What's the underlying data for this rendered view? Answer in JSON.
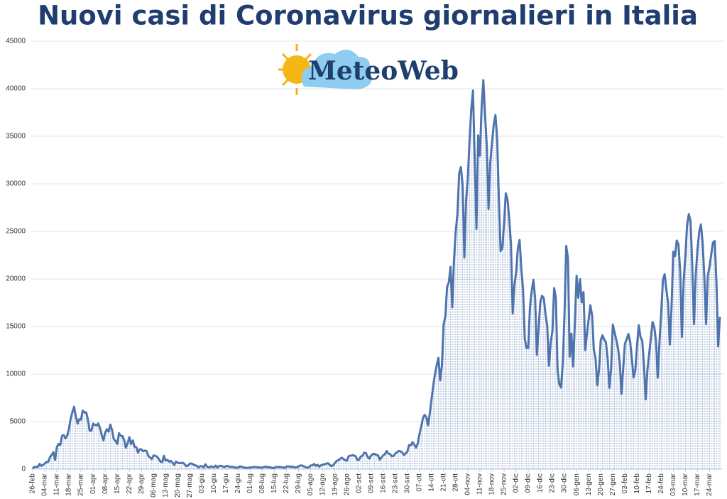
{
  "chart_data": {
    "type": "line",
    "title": "Nuovi casi di Coronavirus giornalieri in Italia",
    "logo": "MeteoWeb",
    "categories": [
      "26-feb",
      null,
      null,
      null,
      null,
      null,
      null,
      "04-mar",
      null,
      null,
      null,
      null,
      null,
      null,
      "11-mar",
      null,
      null,
      null,
      null,
      null,
      null,
      "18-mar",
      null,
      null,
      null,
      null,
      null,
      null,
      "25-mar",
      null,
      null,
      null,
      null,
      null,
      null,
      "01-apr",
      null,
      null,
      null,
      null,
      null,
      null,
      "08-apr",
      null,
      null,
      null,
      null,
      null,
      null,
      "15-apr",
      null,
      null,
      null,
      null,
      null,
      null,
      "22-apr",
      null,
      null,
      null,
      null,
      null,
      null,
      "29-apr",
      null,
      null,
      null,
      null,
      null,
      null,
      "06-mag",
      null,
      null,
      null,
      null,
      null,
      null,
      "13-mag",
      null,
      null,
      null,
      null,
      null,
      null,
      "20-mag",
      null,
      null,
      null,
      null,
      null,
      null,
      "27-mag",
      null,
      null,
      null,
      null,
      null,
      null,
      "03-giu",
      null,
      null,
      null,
      null,
      null,
      null,
      "10-giu",
      null,
      null,
      null,
      null,
      null,
      null,
      "17-giu",
      null,
      null,
      null,
      null,
      null,
      null,
      "24-giu",
      null,
      null,
      null,
      null,
      null,
      null,
      "01-lug",
      null,
      null,
      null,
      null,
      null,
      null,
      "08-lug",
      null,
      null,
      null,
      null,
      null,
      null,
      "15-lug",
      null,
      null,
      null,
      null,
      null,
      null,
      "22-lug",
      null,
      null,
      null,
      null,
      null,
      null,
      "29-lug",
      null,
      null,
      null,
      null,
      null,
      null,
      "05-ago",
      null,
      null,
      null,
      null,
      null,
      null,
      "12-ago",
      null,
      null,
      null,
      null,
      null,
      null,
      "19-ago",
      null,
      null,
      null,
      null,
      null,
      null,
      "26-ago",
      null,
      null,
      null,
      null,
      null,
      null,
      "02-set",
      null,
      null,
      null,
      null,
      null,
      null,
      "09-set",
      null,
      null,
      null,
      null,
      null,
      null,
      "16-set",
      null,
      null,
      null,
      null,
      null,
      null,
      "23-set",
      null,
      null,
      null,
      null,
      null,
      null,
      "30-set",
      null,
      null,
      null,
      null,
      null,
      null,
      "07-ott",
      null,
      null,
      null,
      null,
      null,
      null,
      "14-ott",
      null,
      null,
      null,
      null,
      null,
      null,
      "21-ott",
      null,
      null,
      null,
      null,
      null,
      null,
      "28-ott",
      null,
      null,
      null,
      null,
      null,
      null,
      "04-nov",
      null,
      null,
      null,
      null,
      null,
      null,
      "11-nov",
      null,
      null,
      null,
      null,
      null,
      null,
      "18-nov",
      null,
      null,
      null,
      null,
      null,
      null,
      "25-nov",
      null,
      null,
      null,
      null,
      null,
      null,
      "02-dic",
      null,
      null,
      null,
      null,
      null,
      null,
      "09-dic",
      null,
      null,
      null,
      null,
      null,
      null,
      "16-dic",
      null,
      null,
      null,
      null,
      null,
      null,
      "23-dic",
      null,
      null,
      null,
      null,
      null,
      null,
      "30-dic",
      null,
      null,
      null,
      null,
      null,
      null,
      "06-gen",
      null,
      null,
      null,
      null,
      null,
      null,
      "13-gen",
      null,
      null,
      null,
      null,
      null,
      null,
      "20-gen",
      null,
      null,
      null,
      null,
      null,
      null,
      "27-gen",
      null,
      null,
      null,
      null,
      null,
      null,
      "03-feb",
      null,
      null,
      null,
      null,
      null,
      null,
      "10-feb",
      null,
      null,
      null,
      null,
      null,
      null,
      "17-feb",
      null,
      null,
      null,
      null,
      null,
      null,
      "24-feb",
      null,
      null,
      null,
      null,
      null,
      null,
      "03-mar",
      null,
      null,
      null,
      null,
      null,
      null,
      "10-mar",
      null,
      null,
      null,
      null,
      null,
      null,
      "17-mar",
      null,
      null,
      null,
      null,
      null,
      null,
      "24-mar",
      null,
      null,
      null,
      null,
      null,
      null
    ],
    "values": [
      78,
      250,
      238,
      240,
      561,
      347,
      466,
      587,
      769,
      778,
      1247,
      1492,
      1797,
      977,
      2313,
      2651,
      2547,
      3497,
      3590,
      3233,
      3526,
      4207,
      5322,
      5986,
      6557,
      5560,
      4789,
      5249,
      5210,
      6153,
      5959,
      5974,
      5217,
      4050,
      4053,
      4782,
      4668,
      4585,
      4805,
      4316,
      3599,
      3039,
      3836,
      4204,
      3951,
      4694,
      4092,
      3153,
      2972,
      2667,
      3786,
      3493,
      3491,
      3047,
      2256,
      2729,
      3370,
      2646,
      3021,
      2357,
      2324,
      1739,
      2091,
      2086,
      1872,
      1965,
      1900,
      1389,
      1221,
      1075,
      1444,
      1401,
      1327,
      1083,
      802,
      744,
      1402,
      888,
      992,
      789,
      875,
      675,
      451,
      813,
      665,
      642,
      652,
      669,
      531,
      300,
      397,
      584,
      593,
      516,
      416,
      355,
      178,
      318,
      321,
      177,
      518,
      270,
      197,
      280,
      283,
      202,
      379,
      163,
      346,
      338,
      301,
      210,
      328,
      331,
      251,
      262,
      224,
      218,
      122,
      190,
      296,
      259,
      175,
      174,
      126,
      142,
      187,
      201,
      223,
      235,
      192,
      208,
      138,
      193,
      229,
      276,
      188,
      234,
      169,
      114,
      162,
      230,
      233,
      249,
      219,
      190,
      129,
      282,
      306,
      252,
      274,
      255,
      170,
      212,
      289,
      386,
      379,
      295,
      239,
      159,
      190,
      384,
      402,
      552,
      347,
      463,
      259,
      412,
      481,
      523,
      574,
      629,
      479,
      320,
      403,
      642,
      845,
      947,
      1071,
      1210,
      1071,
      953,
      878,
      1367,
      1411,
      1462,
      1444,
      1365,
      996,
      975,
      1326,
      1397,
      1733,
      1695,
      1297,
      1108,
      1434,
      1597,
      1616,
      1501,
      1458,
      1008,
      1229,
      1452,
      1585,
      1907,
      1638,
      1587,
      1350,
      1392,
      1640,
      1786,
      1912,
      1869,
      1766,
      1494,
      1648,
      1851,
      2548,
      2499,
      2844,
      2578,
      2257,
      2677,
      3678,
      4458,
      5372,
      5724,
      5456,
      4619,
      5901,
      7332,
      8804,
      10010,
      10925,
      11705,
      9338,
      10874,
      15199,
      16079,
      19143,
      19644,
      21273,
      17012,
      21994,
      24991,
      26831,
      31084,
      31758,
      29907,
      22253,
      28244,
      30550,
      34505,
      37809,
      39811,
      32616,
      25271,
      35098,
      32961,
      37978,
      40902,
      37255,
      33979,
      27354,
      32191,
      34283,
      36176,
      37242,
      34767,
      28337,
      22930,
      23232,
      25853,
      29003,
      28352,
      26323,
      23648,
      16377,
      19350,
      20709,
      23225,
      24099,
      21052,
      18887,
      13720,
      12756,
      12757,
      16999,
      18727,
      19903,
      17938,
      12030,
      14844,
      17572,
      18236,
      17992,
      16308,
      15104,
      10872,
      13318,
      14522,
      19037,
      18040,
      10407,
      8913,
      8585,
      11212,
      16202,
      23477,
      22211,
      11831,
      14245,
      10800,
      15378,
      20331,
      18020,
      19978,
      17533,
      18627,
      12532,
      14242,
      15774,
      17246,
      16146,
      12545,
      11629,
      8824,
      10497,
      13571,
      14078,
      13633,
      13331,
      11629,
      8561,
      10593,
      15204,
      14372,
      13574,
      12715,
      11252,
      7925,
      10630,
      13189,
      13659,
      14218,
      13442,
      11641,
      9660,
      10386,
      12956,
      15146,
      13908,
      13532,
      11068,
      7351,
      10386,
      12074,
      13762,
      15479,
      14931,
      13452,
      9630,
      13314,
      16424,
      19886,
      20499,
      18916,
      17455,
      13114,
      17083,
      22865,
      22409,
      24036,
      23641,
      20765,
      13902,
      19749,
      22409,
      25673,
      26824,
      26062,
      21315,
      15267,
      20396,
      23059,
      24935,
      25735,
      23832,
      20159,
      15267,
      20396,
      21267,
      22616,
      23839,
      23985,
      19611,
      12916,
      16017
    ],
    "color": "#4f74ad",
    "ylim": [
      0,
      45000
    ],
    "yticks": [
      0,
      5000,
      10000,
      15000,
      20000,
      25000,
      30000,
      35000,
      40000,
      45000
    ],
    "grid": true
  }
}
